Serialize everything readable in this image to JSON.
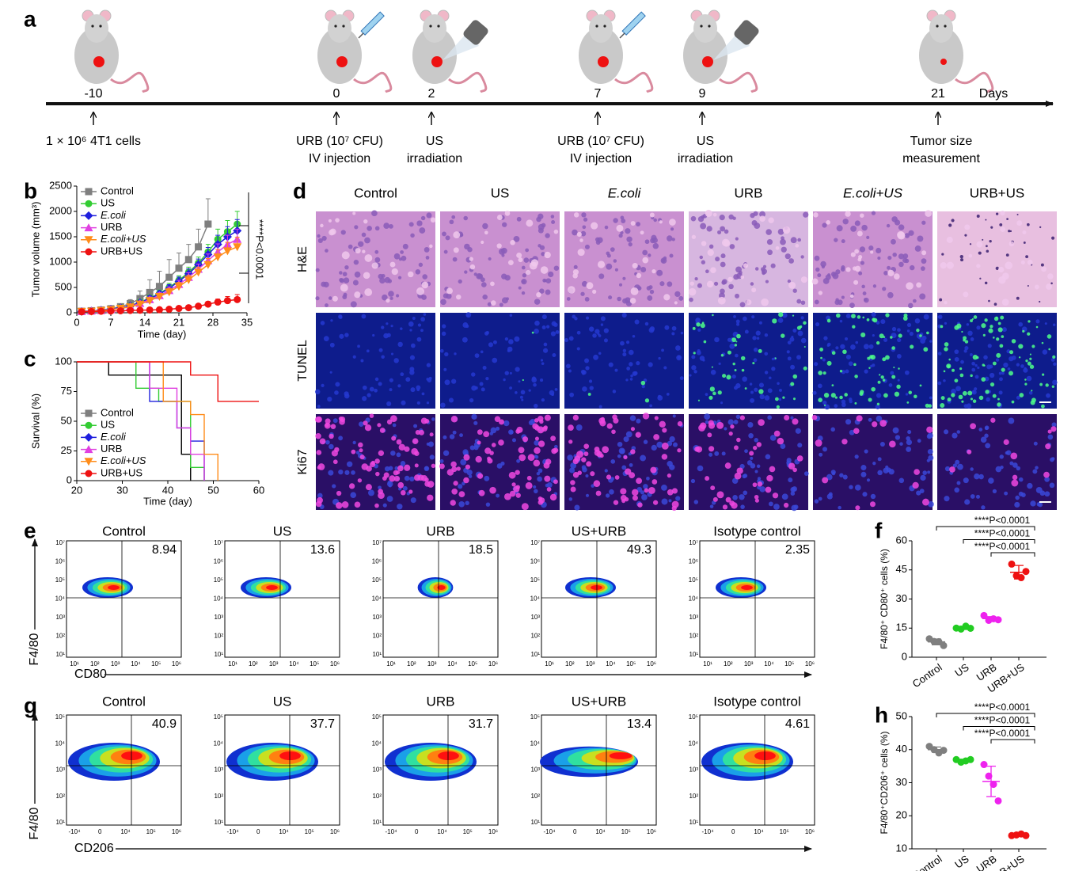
{
  "panel_labels": [
    "a",
    "b",
    "c",
    "d",
    "e",
    "f",
    "g",
    "h"
  ],
  "timeline": {
    "unit": "Days",
    "events": [
      {
        "day": -10,
        "lines": [
          "1 × 10⁶ 4T1 cells"
        ]
      },
      {
        "day": 0,
        "lines": [
          "URB (10⁷ CFU)",
          "IV injection"
        ]
      },
      {
        "day": 2,
        "lines": [
          "US",
          "irradiation"
        ]
      },
      {
        "day": 7,
        "lines": [
          "URB (10⁷ CFU)",
          "IV injection"
        ]
      },
      {
        "day": 9,
        "lines": [
          "US",
          "irradiation"
        ]
      },
      {
        "day": 21,
        "lines": [
          "Tumor size",
          "measurement"
        ]
      }
    ]
  },
  "chart_data": [
    {
      "type": "line",
      "x_label": "Time (day)",
      "y_label": "Tumor volume (mm³)",
      "annotation": "****P<0.0001",
      "x": [
        1,
        3,
        5,
        7,
        9,
        11,
        13,
        15,
        17,
        19,
        21,
        23,
        25,
        27,
        29,
        31,
        33
      ],
      "xlim": [
        0,
        35
      ],
      "xticks": [
        0,
        7,
        14,
        21,
        28,
        35
      ],
      "ylim": [
        0,
        2500
      ],
      "yticks": [
        0,
        500,
        1000,
        1500,
        2000,
        2500
      ],
      "series": [
        {
          "name": "Control",
          "color": "#7f7f7f",
          "marker": "square",
          "values": [
            30,
            40,
            55,
            80,
            120,
            180,
            280,
            400,
            520,
            700,
            880,
            1050,
            1300,
            1750,
            null,
            null,
            null
          ],
          "errors": [
            10,
            15,
            20,
            30,
            50,
            80,
            150,
            250,
            300,
            350,
            300,
            300,
            350,
            500,
            null,
            null,
            null
          ]
        },
        {
          "name": "US",
          "color": "#33cc33",
          "marker": "circle",
          "values": [
            25,
            35,
            50,
            70,
            100,
            140,
            210,
            290,
            380,
            500,
            640,
            800,
            980,
            1200,
            1450,
            1600,
            1750
          ],
          "errors": [
            10,
            15,
            20,
            25,
            30,
            40,
            50,
            60,
            70,
            80,
            90,
            100,
            120,
            150,
            200,
            220,
            250
          ]
        },
        {
          "name": "E.coli",
          "color": "#1f1fdd",
          "marker": "diamond",
          "values": [
            25,
            35,
            50,
            70,
            95,
            135,
            200,
            280,
            370,
            480,
            620,
            770,
            950,
            1150,
            1350,
            1500,
            1620
          ],
          "errors": [
            10,
            12,
            18,
            22,
            28,
            35,
            45,
            55,
            65,
            75,
            85,
            95,
            110,
            140,
            180,
            200,
            220
          ]
        },
        {
          "name": "URB",
          "color": "#e040e0",
          "marker": "triangle-up",
          "values": [
            25,
            35,
            45,
            65,
            90,
            125,
            185,
            260,
            340,
            440,
            560,
            700,
            860,
            1030,
            1200,
            1350,
            1450
          ],
          "errors": [
            10,
            12,
            15,
            20,
            25,
            30,
            40,
            50,
            60,
            70,
            80,
            90,
            100,
            130,
            160,
            180,
            200
          ]
        },
        {
          "name": "E.coli+US",
          "color": "#ff8c1a",
          "marker": "triangle-down",
          "values": [
            25,
            30,
            45,
            60,
            85,
            115,
            170,
            240,
            320,
            410,
            520,
            650,
            800,
            950,
            1100,
            1220,
            1300
          ],
          "errors": [
            10,
            12,
            15,
            20,
            25,
            30,
            40,
            50,
            60,
            70,
            80,
            90,
            100,
            120,
            150,
            170,
            190
          ]
        },
        {
          "name": "URB+US",
          "color": "#ee1111",
          "marker": "circle",
          "values": [
            20,
            25,
            30,
            35,
            40,
            45,
            50,
            55,
            60,
            70,
            85,
            100,
            130,
            170,
            210,
            240,
            260
          ],
          "errors": [
            5,
            5,
            8,
            10,
            10,
            12,
            15,
            15,
            20,
            25,
            30,
            35,
            40,
            50,
            60,
            80,
            100
          ]
        }
      ]
    },
    {
      "type": "step",
      "x_label": "Time (day)",
      "y_label": "Survival (%)",
      "xlim": [
        20,
        60
      ],
      "xticks": [
        20,
        30,
        40,
        50,
        60
      ],
      "ylim": [
        0,
        100
      ],
      "yticks": [
        0,
        25,
        50,
        75,
        100
      ],
      "series": [
        {
          "name": "Control",
          "color": "#000000",
          "x": [
            20,
            27,
            43,
            45
          ],
          "values": [
            100,
            88.9,
            22.2,
            0
          ]
        },
        {
          "name": "US",
          "color": "#33cc33",
          "x": [
            20,
            33,
            38,
            45,
            48
          ],
          "values": [
            100,
            77.8,
            66.7,
            11.1,
            0
          ]
        },
        {
          "name": "E.coli",
          "color": "#1f1fdd",
          "x": [
            20,
            36,
            42,
            45,
            48
          ],
          "values": [
            100,
            66.7,
            44.4,
            33.3,
            0
          ]
        },
        {
          "name": "URB",
          "color": "#e040e0",
          "x": [
            20,
            36,
            42,
            45,
            48
          ],
          "values": [
            100,
            77.8,
            44.4,
            22.2,
            0
          ]
        },
        {
          "name": "E.coli+US",
          "color": "#ff8c1a",
          "x": [
            20,
            39,
            45,
            48,
            51
          ],
          "values": [
            100,
            66.7,
            55.6,
            22.2,
            0
          ]
        },
        {
          "name": "URB+US",
          "color": "#ee1111",
          "x": [
            20,
            45,
            51,
            60
          ],
          "values": [
            100,
            88.9,
            66.7,
            66.7
          ]
        }
      ]
    },
    {
      "type": "dot",
      "y_label": "F4/80⁺ CD80⁺ cells (%)",
      "categories": [
        "Control",
        "US",
        "URB",
        "URB+US"
      ],
      "colors": [
        "#7f7f7f",
        "#22cc22",
        "#ee22ee",
        "#ee1111"
      ],
      "values": [
        [
          9.5,
          8.1,
          8,
          6
        ],
        [
          15,
          14.5,
          16,
          14.9
        ],
        [
          21.5,
          19,
          19.8,
          19.3
        ],
        [
          48,
          42,
          41,
          44.2
        ]
      ],
      "means": [
        7.9,
        15.1,
        19.9,
        43.8
      ],
      "sd": [
        1.5,
        0.8,
        1.0,
        3.5
      ],
      "ylim": [
        0,
        60
      ],
      "yticks": [
        0,
        15,
        30,
        45,
        60
      ],
      "annotations": [
        "****P<0.0001",
        "****P<0.0001",
        "****P<0.0001"
      ]
    },
    {
      "type": "dot",
      "y_label": "F4/80⁺CD206⁺ cells (%)",
      "categories": [
        "Control",
        "US",
        "URB",
        "URB+US"
      ],
      "colors": [
        "#7f7f7f",
        "#22cc22",
        "#ee22ee",
        "#ee1111"
      ],
      "values": [
        [
          41,
          40,
          39,
          39.8
        ],
        [
          37,
          36.2,
          36.6,
          37
        ],
        [
          35.5,
          32,
          29.5,
          24.5
        ],
        [
          14,
          14.2,
          14.5,
          14
        ]
      ],
      "means": [
        40,
        36.7,
        30.4,
        14.2
      ],
      "sd": [
        0.8,
        0.4,
        4.6,
        0.2
      ],
      "ylim": [
        10,
        50
      ],
      "yticks": [
        10,
        20,
        30,
        40,
        50
      ],
      "annotations": [
        "****P<0.0001",
        "****P<0.0001",
        "****P<0.0001"
      ]
    }
  ],
  "histology": {
    "columns": [
      "Control",
      "US",
      "E.coli",
      "URB",
      "E.coli+US",
      "URB+US"
    ],
    "rows": [
      "H&E",
      "TUNEL",
      "Ki67"
    ]
  },
  "flow": [
    {
      "y_label": "F4/80",
      "x_label": "CD80",
      "titles": [
        "Control",
        "US",
        "URB",
        "US+URB",
        "Isotype control"
      ],
      "values": [
        8.94,
        13.6,
        18.5,
        49.3,
        2.35
      ],
      "yticks": [
        "10⁷",
        "10⁶",
        "10⁵",
        "10⁴",
        "10³",
        "10²",
        "10¹"
      ],
      "xticks": [
        "10¹",
        "10²",
        "10³",
        "10⁴",
        "10⁵",
        "10⁶"
      ]
    },
    {
      "y_label": "F4/80",
      "x_label": "CD206",
      "titles": [
        "Control",
        "US",
        "URB",
        "US+URB",
        "Isotype control"
      ],
      "values": [
        40.9,
        37.7,
        31.7,
        13.4,
        4.61
      ],
      "yticks": [
        "10⁵",
        "10⁴",
        "10³",
        "10²",
        "10¹"
      ],
      "xticks": [
        "-10⁴",
        "0",
        "10⁴",
        "10⁵",
        "10⁶"
      ]
    }
  ]
}
